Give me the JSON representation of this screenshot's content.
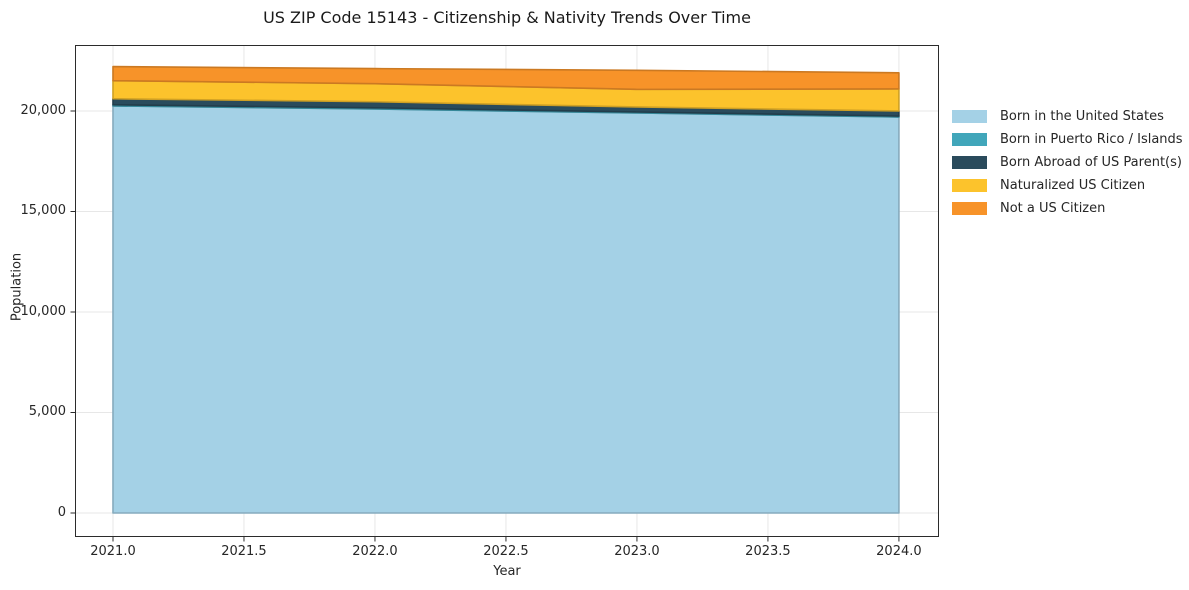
{
  "chart_data": {
    "type": "area",
    "stacked": true,
    "title": "US ZIP Code 15143 - Citizenship & Nativity Trends Over Time",
    "xlabel": "Year",
    "ylabel": "Population",
    "x": [
      2021,
      2022,
      2023,
      2024
    ],
    "series": [
      {
        "name": "Born in the United States",
        "color": "#a4d1e6",
        "values": [
          20250,
          20100,
          19900,
          19700
        ]
      },
      {
        "name": "Born in Puerto Rico / Islands",
        "color": "#41a6ba",
        "values": [
          60,
          60,
          50,
          50
        ]
      },
      {
        "name": "Born Abroad of US Parent(s)",
        "color": "#2a4b5c",
        "values": [
          300,
          300,
          250,
          250
        ]
      },
      {
        "name": "Naturalized US Citizen",
        "color": "#fcc32c",
        "values": [
          900,
          900,
          875,
          1100
        ]
      },
      {
        "name": "Not a US Citizen",
        "color": "#f79329",
        "values": [
          700,
          750,
          950,
          800
        ]
      }
    ],
    "x_ticks": [
      2021.0,
      2021.5,
      2022.0,
      2022.5,
      2023.0,
      2023.5,
      2024.0
    ],
    "x_ticklabels": [
      "2021.0",
      "2021.5",
      "2022.0",
      "2022.5",
      "2023.0",
      "2023.5",
      "2024.0"
    ],
    "y_ticks": [
      0,
      5000,
      10000,
      15000,
      20000
    ],
    "y_ticklabels": [
      "0",
      "5,000",
      "10,000",
      "15,000",
      "20,000"
    ],
    "xlim": [
      2020.855,
      2024.153
    ],
    "ylim": [
      -1194,
      23283
    ],
    "grid": true,
    "grid_color": "#e7e7e7",
    "frame_color": "#2b2b2b",
    "legend_position": "right"
  }
}
